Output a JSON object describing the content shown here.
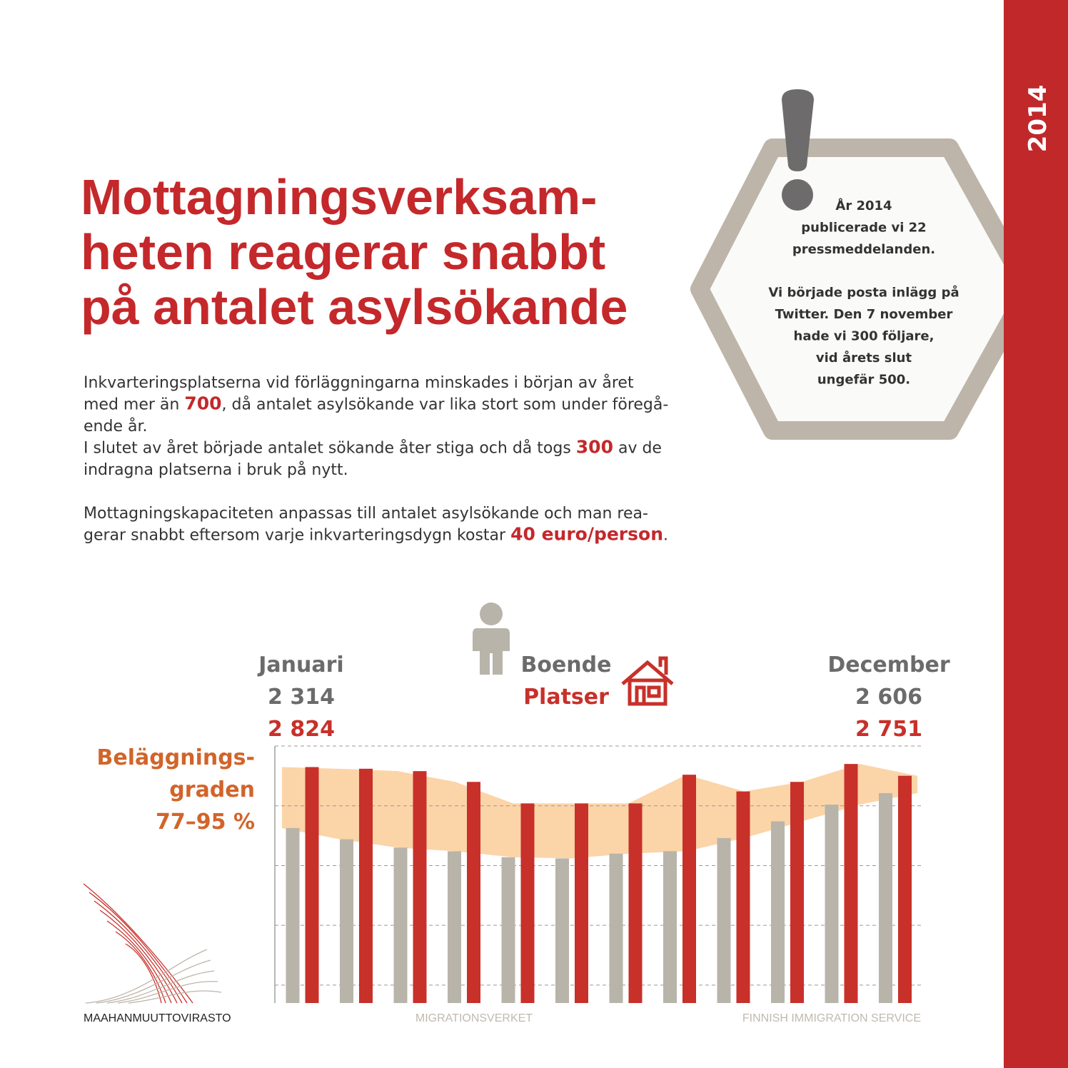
{
  "side_label": "2014",
  "title": [
    "Mottagningsverksam-",
    "heten reagerar snabbt",
    "på antalet asylsökande"
  ],
  "body": {
    "paragraphs": [
      [
        [
          "Inkvarteringsplatserna vid förläggningarna minskades i början av året"
        ],
        [
          "med mer än ",
          "700",
          ", då antalet asylsökande var lika stort som under föregå-"
        ],
        [
          "ende år."
        ],
        [
          "I slutet av året började antalet sökande åter stiga och då togs ",
          "300",
          " av de"
        ],
        [
          "indragna platserna i bruk på nytt."
        ]
      ],
      [
        [
          "Mottagningskapaciteten anpassas till antalet asylsökande och man rea-"
        ],
        [
          "gerar snabbt eftersom varje inkvarteringsdygn kostar ",
          "40 euro/person",
          "."
        ]
      ]
    ]
  },
  "note": {
    "paragraphs": [
      [
        "År 2014",
        "publicerade vi 22",
        "pressmeddelanden."
      ],
      [
        "Vi började posta inlägg på",
        "Twitter. Den 7 november",
        "hade vi 300 följare,",
        "vid årets slut",
        "ungefär 500."
      ]
    ]
  },
  "chart_data": {
    "type": "bar",
    "categories": [
      "Januari",
      null,
      null,
      null,
      null,
      null,
      null,
      null,
      null,
      null,
      null,
      "December"
    ],
    "series": [
      {
        "name": "Boende",
        "color": "#b8b4aa",
        "values": [
          2314,
          2220,
          2150,
          2120,
          2070,
          2060,
          2100,
          2120,
          2230,
          2370,
          2510,
          2606
        ],
        "value_labels": [
          "2 314",
          null,
          null,
          null,
          null,
          null,
          null,
          null,
          null,
          null,
          null,
          "2 606"
        ]
      },
      {
        "name": "Platser",
        "color": "#c8302a",
        "values": [
          2824,
          2810,
          2790,
          2700,
          2520,
          2520,
          2520,
          2760,
          2620,
          2700,
          2850,
          2751
        ],
        "value_labels": [
          "2 824",
          null,
          null,
          null,
          null,
          null,
          null,
          null,
          null,
          null,
          null,
          "2 751"
        ]
      }
    ],
    "band": {
      "label": [
        "Beläggnings-",
        "graden",
        "77–95 %"
      ],
      "color": "#fbd4a8",
      "label_color": "#d2642a"
    },
    "ylim": [
      850,
      3000
    ],
    "yticks": [
      1000,
      1500,
      2000,
      2500,
      3000
    ],
    "grid": true
  },
  "footer": {
    "left": "MAAHANMUUTTOVIRASTO",
    "center": "MIGRATIONSVERKET",
    "right": "FINNISH IMMIGRATION SERVICE"
  }
}
